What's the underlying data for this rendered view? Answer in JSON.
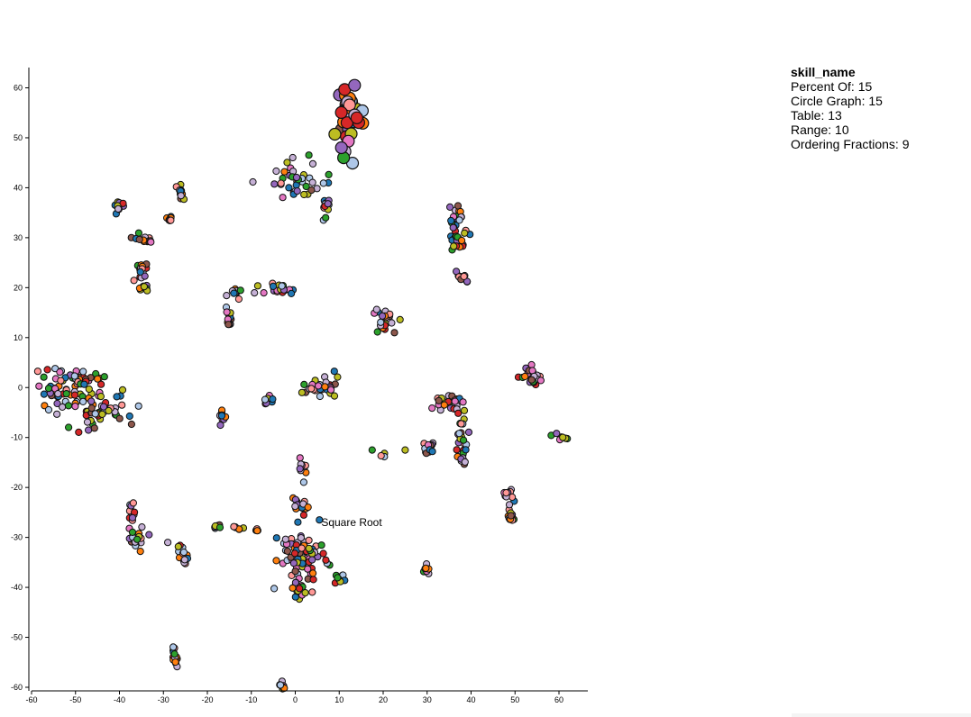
{
  "legend": {
    "title": "skill_name",
    "items": [
      {
        "label": "Percent Of",
        "count": 15
      },
      {
        "label": "Circle Graph",
        "count": 15
      },
      {
        "label": "Table",
        "count": 13
      },
      {
        "label": "Range",
        "count": 10
      },
      {
        "label": "Ordering Fractions",
        "count": 9
      }
    ]
  },
  "chart_data": {
    "type": "scatter",
    "title": "",
    "xlabel": "",
    "ylabel": "",
    "xlim": [
      -60,
      63
    ],
    "ylim": [
      -62,
      62
    ],
    "xticks": [
      -60,
      -50,
      -40,
      -30,
      -20,
      -10,
      0,
      10,
      20,
      30,
      40,
      50,
      60
    ],
    "yticks": [
      60,
      50,
      40,
      30,
      20,
      10,
      0,
      -10,
      -20,
      -30,
      -40,
      -50,
      -60
    ],
    "grid": false,
    "palette": [
      "#1f77b4",
      "#ff7f0e",
      "#2ca02c",
      "#d62728",
      "#9467bd",
      "#8c564b",
      "#e377c2",
      "#bcbd22",
      "#aec7e8",
      "#c5b0d5",
      "#ff9896"
    ],
    "annotation": {
      "text": "Square Root",
      "x": 5.5,
      "y": -27
    },
    "clusters": [
      {
        "cx": 12.5,
        "cy": 54,
        "rx": 2.2,
        "ry": 6,
        "n": 40,
        "big": true
      },
      {
        "cx": 0.5,
        "cy": 42,
        "rx": 5,
        "ry": 3,
        "n": 40
      },
      {
        "cx": 7,
        "cy": 36,
        "rx": 0.8,
        "ry": 1.5,
        "n": 12
      },
      {
        "cx": -40,
        "cy": 36,
        "rx": 1,
        "ry": 1,
        "n": 12
      },
      {
        "cx": -26,
        "cy": 39,
        "rx": 0.8,
        "ry": 1.5,
        "n": 12
      },
      {
        "cx": -28.5,
        "cy": 34,
        "rx": 0.8,
        "ry": 1,
        "n": 8
      },
      {
        "cx": -34.5,
        "cy": 30,
        "rx": 1.5,
        "ry": 0.8,
        "n": 12
      },
      {
        "cx": -35,
        "cy": 23.5,
        "rx": 1.5,
        "ry": 1.2,
        "n": 16
      },
      {
        "cx": -34.5,
        "cy": 20,
        "rx": 1,
        "ry": 1,
        "n": 8
      },
      {
        "cx": 36.5,
        "cy": 34,
        "rx": 1.5,
        "ry": 3,
        "n": 24
      },
      {
        "cx": 37.5,
        "cy": 29.5,
        "rx": 1.8,
        "ry": 2,
        "n": 16
      },
      {
        "cx": 38,
        "cy": 22,
        "rx": 1.2,
        "ry": 0.8,
        "n": 10
      },
      {
        "cx": -14,
        "cy": 19,
        "rx": 1.5,
        "ry": 1,
        "n": 12
      },
      {
        "cx": -15,
        "cy": 13.5,
        "rx": 1,
        "ry": 2,
        "n": 12
      },
      {
        "cx": -3.5,
        "cy": 19.5,
        "rx": 4,
        "ry": 1,
        "n": 20
      },
      {
        "cx": 20.5,
        "cy": 13,
        "rx": 2,
        "ry": 2.5,
        "n": 20
      },
      {
        "cx": -53,
        "cy": 0,
        "rx": 5,
        "ry": 3,
        "n": 40
      },
      {
        "cx": -45,
        "cy": -4,
        "rx": 6,
        "ry": 4,
        "n": 60
      },
      {
        "cx": -48,
        "cy": 2,
        "rx": 3,
        "ry": 1.5,
        "n": 20
      },
      {
        "cx": -6,
        "cy": -2.5,
        "rx": 1.5,
        "ry": 0.8,
        "n": 12
      },
      {
        "cx": 5,
        "cy": 0.5,
        "rx": 3.5,
        "ry": 1.8,
        "n": 30
      },
      {
        "cx": -16.5,
        "cy": -6,
        "rx": 0.7,
        "ry": 1.2,
        "n": 10
      },
      {
        "cx": 53,
        "cy": 3,
        "rx": 1.5,
        "ry": 1,
        "n": 12
      },
      {
        "cx": 54,
        "cy": 1.5,
        "rx": 1.5,
        "ry": 1.2,
        "n": 14
      },
      {
        "cx": 35,
        "cy": -3,
        "rx": 3,
        "ry": 1.5,
        "n": 24
      },
      {
        "cx": 38,
        "cy": -9,
        "rx": 1,
        "ry": 5,
        "n": 24
      },
      {
        "cx": 30,
        "cy": -12,
        "rx": 1.2,
        "ry": 1.2,
        "n": 14
      },
      {
        "cx": 38,
        "cy": -14.5,
        "rx": 0.8,
        "ry": 1,
        "n": 8
      },
      {
        "cx": 20,
        "cy": -13.5,
        "rx": 0.5,
        "ry": 0.5,
        "n": 4
      },
      {
        "cx": 60.5,
        "cy": -10,
        "rx": 1.2,
        "ry": 0.6,
        "n": 10
      },
      {
        "cx": 1.5,
        "cy": -17,
        "rx": 0.8,
        "ry": 2.5,
        "n": 10
      },
      {
        "cx": 0.5,
        "cy": -23.5,
        "rx": 2,
        "ry": 1.5,
        "n": 20
      },
      {
        "cx": 48.5,
        "cy": -21.5,
        "rx": 1,
        "ry": 1.2,
        "n": 10
      },
      {
        "cx": 49,
        "cy": -25.5,
        "rx": 1,
        "ry": 1.8,
        "n": 14
      },
      {
        "cx": -37.5,
        "cy": -25,
        "rx": 1,
        "ry": 2,
        "n": 12
      },
      {
        "cx": -36,
        "cy": -30.5,
        "rx": 2,
        "ry": 2,
        "n": 18
      },
      {
        "cx": -25.5,
        "cy": -33.5,
        "rx": 1,
        "ry": 2,
        "n": 14
      },
      {
        "cx": -17.5,
        "cy": -28,
        "rx": 1,
        "ry": 0.4,
        "n": 6
      },
      {
        "cx": -13,
        "cy": -28,
        "rx": 1,
        "ry": 0.4,
        "n": 6
      },
      {
        "cx": -9,
        "cy": -28.5,
        "rx": 0.8,
        "ry": 0.5,
        "n": 5
      },
      {
        "cx": 1.5,
        "cy": -34,
        "rx": 4,
        "ry": 5,
        "n": 70
      },
      {
        "cx": 10,
        "cy": -38.5,
        "rx": 1,
        "ry": 1,
        "n": 10
      },
      {
        "cx": 30,
        "cy": -36.5,
        "rx": 0.6,
        "ry": 1.5,
        "n": 8
      },
      {
        "cx": 0.5,
        "cy": -40,
        "rx": 1.5,
        "ry": 2,
        "n": 14
      },
      {
        "cx": -27.5,
        "cy": -53,
        "rx": 0.6,
        "ry": 2,
        "n": 14
      },
      {
        "cx": -3,
        "cy": -60,
        "rx": 0.5,
        "ry": 1,
        "n": 8
      }
    ],
    "singletons": [
      {
        "x": -29,
        "y": -31,
        "c": 9
      },
      {
        "x": 17.5,
        "y": -12.5,
        "c": 2
      },
      {
        "x": 25,
        "y": -12.5,
        "c": 7
      },
      {
        "x": 5.5,
        "y": -26.5,
        "c": 0
      },
      {
        "x": 11,
        "y": 46,
        "c": 2,
        "big": true
      },
      {
        "x": 10.5,
        "y": 48,
        "c": 4,
        "big": true
      },
      {
        "x": 14,
        "y": 54,
        "c": 3,
        "big": true
      },
      {
        "x": 13.5,
        "y": 60.5,
        "c": 4,
        "big": true
      }
    ]
  }
}
